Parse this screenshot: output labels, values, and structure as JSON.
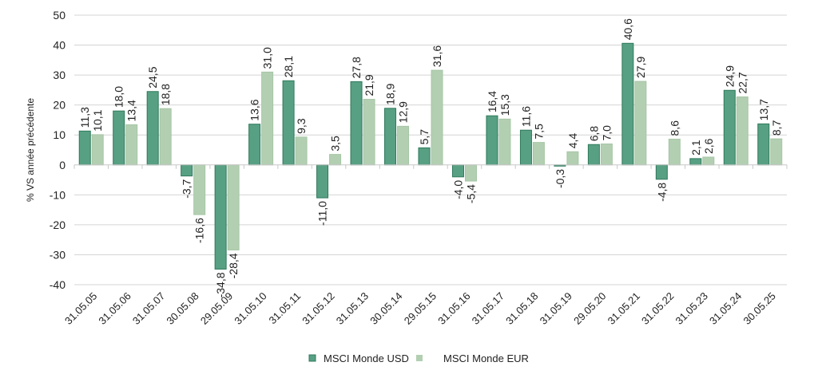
{
  "chart_data": {
    "type": "bar",
    "title": "",
    "xlabel": "",
    "ylabel": "% VS année précédente",
    "ylim": [
      -40,
      50
    ],
    "yticks": [
      50,
      40,
      30,
      20,
      10,
      0,
      -10,
      -20,
      -30,
      -40
    ],
    "ytick_labels": [
      "50",
      "40",
      "30",
      "20",
      "10",
      "0",
      "-10",
      "-20",
      "-30",
      "-40"
    ],
    "grid": true,
    "legend_position": "bottom-center",
    "categories": [
      "31.05.05",
      "31.05.06",
      "31.05.07",
      "30.05.08",
      "29.05.09",
      "31.05.10",
      "31.05.11",
      "31.05.12",
      "31.05.13",
      "30.05.14",
      "29.05.15",
      "31.05.16",
      "31.05.17",
      "31.05.18",
      "31.05.19",
      "29.05.20",
      "31.05.21",
      "31.05.22",
      "31.05.23",
      "31.05.24",
      "30.05.25"
    ],
    "series": [
      {
        "name": "MSCI Monde USD",
        "color": "#58a083",
        "border": "#2f7a5c",
        "values": [
          11.3,
          18.0,
          24.5,
          -3.7,
          -34.8,
          13.6,
          28.1,
          -11.0,
          27.8,
          18.9,
          5.7,
          -4.0,
          16.4,
          11.6,
          -0.3,
          6.8,
          40.6,
          -4.8,
          2.1,
          24.9,
          13.7
        ],
        "labels": [
          "11,3",
          "18,0",
          "24,5",
          "-3,7",
          "-34,8",
          "13,6",
          "28,1",
          "-11,0",
          "27,8",
          "18,9",
          "5,7",
          "-4,0",
          "16,4",
          "11,6",
          "-0,3",
          "6,8",
          "40,6",
          "-4,8",
          "2,1",
          "24,9",
          "13,7"
        ]
      },
      {
        "name": "MSCI Monde EUR",
        "color": "#b3cfb2",
        "border": "#a6c6a5",
        "values": [
          10.1,
          13.4,
          18.8,
          -16.6,
          -28.4,
          31.0,
          9.3,
          3.5,
          21.9,
          12.9,
          31.6,
          -5.4,
          15.3,
          7.5,
          4.4,
          7.0,
          27.9,
          8.6,
          2.6,
          22.7,
          8.7
        ],
        "labels": [
          "10,1",
          "13,4",
          "18,8",
          "-16,6",
          "-28,4",
          "31,0",
          "9,3",
          "3,5",
          "21,9",
          "12,9",
          "31,6",
          "-5,4",
          "15,3",
          "7,5",
          "4,4",
          "7,0",
          "27,9",
          "8,6",
          "2,6",
          "22,7",
          "8,7"
        ]
      }
    ]
  }
}
